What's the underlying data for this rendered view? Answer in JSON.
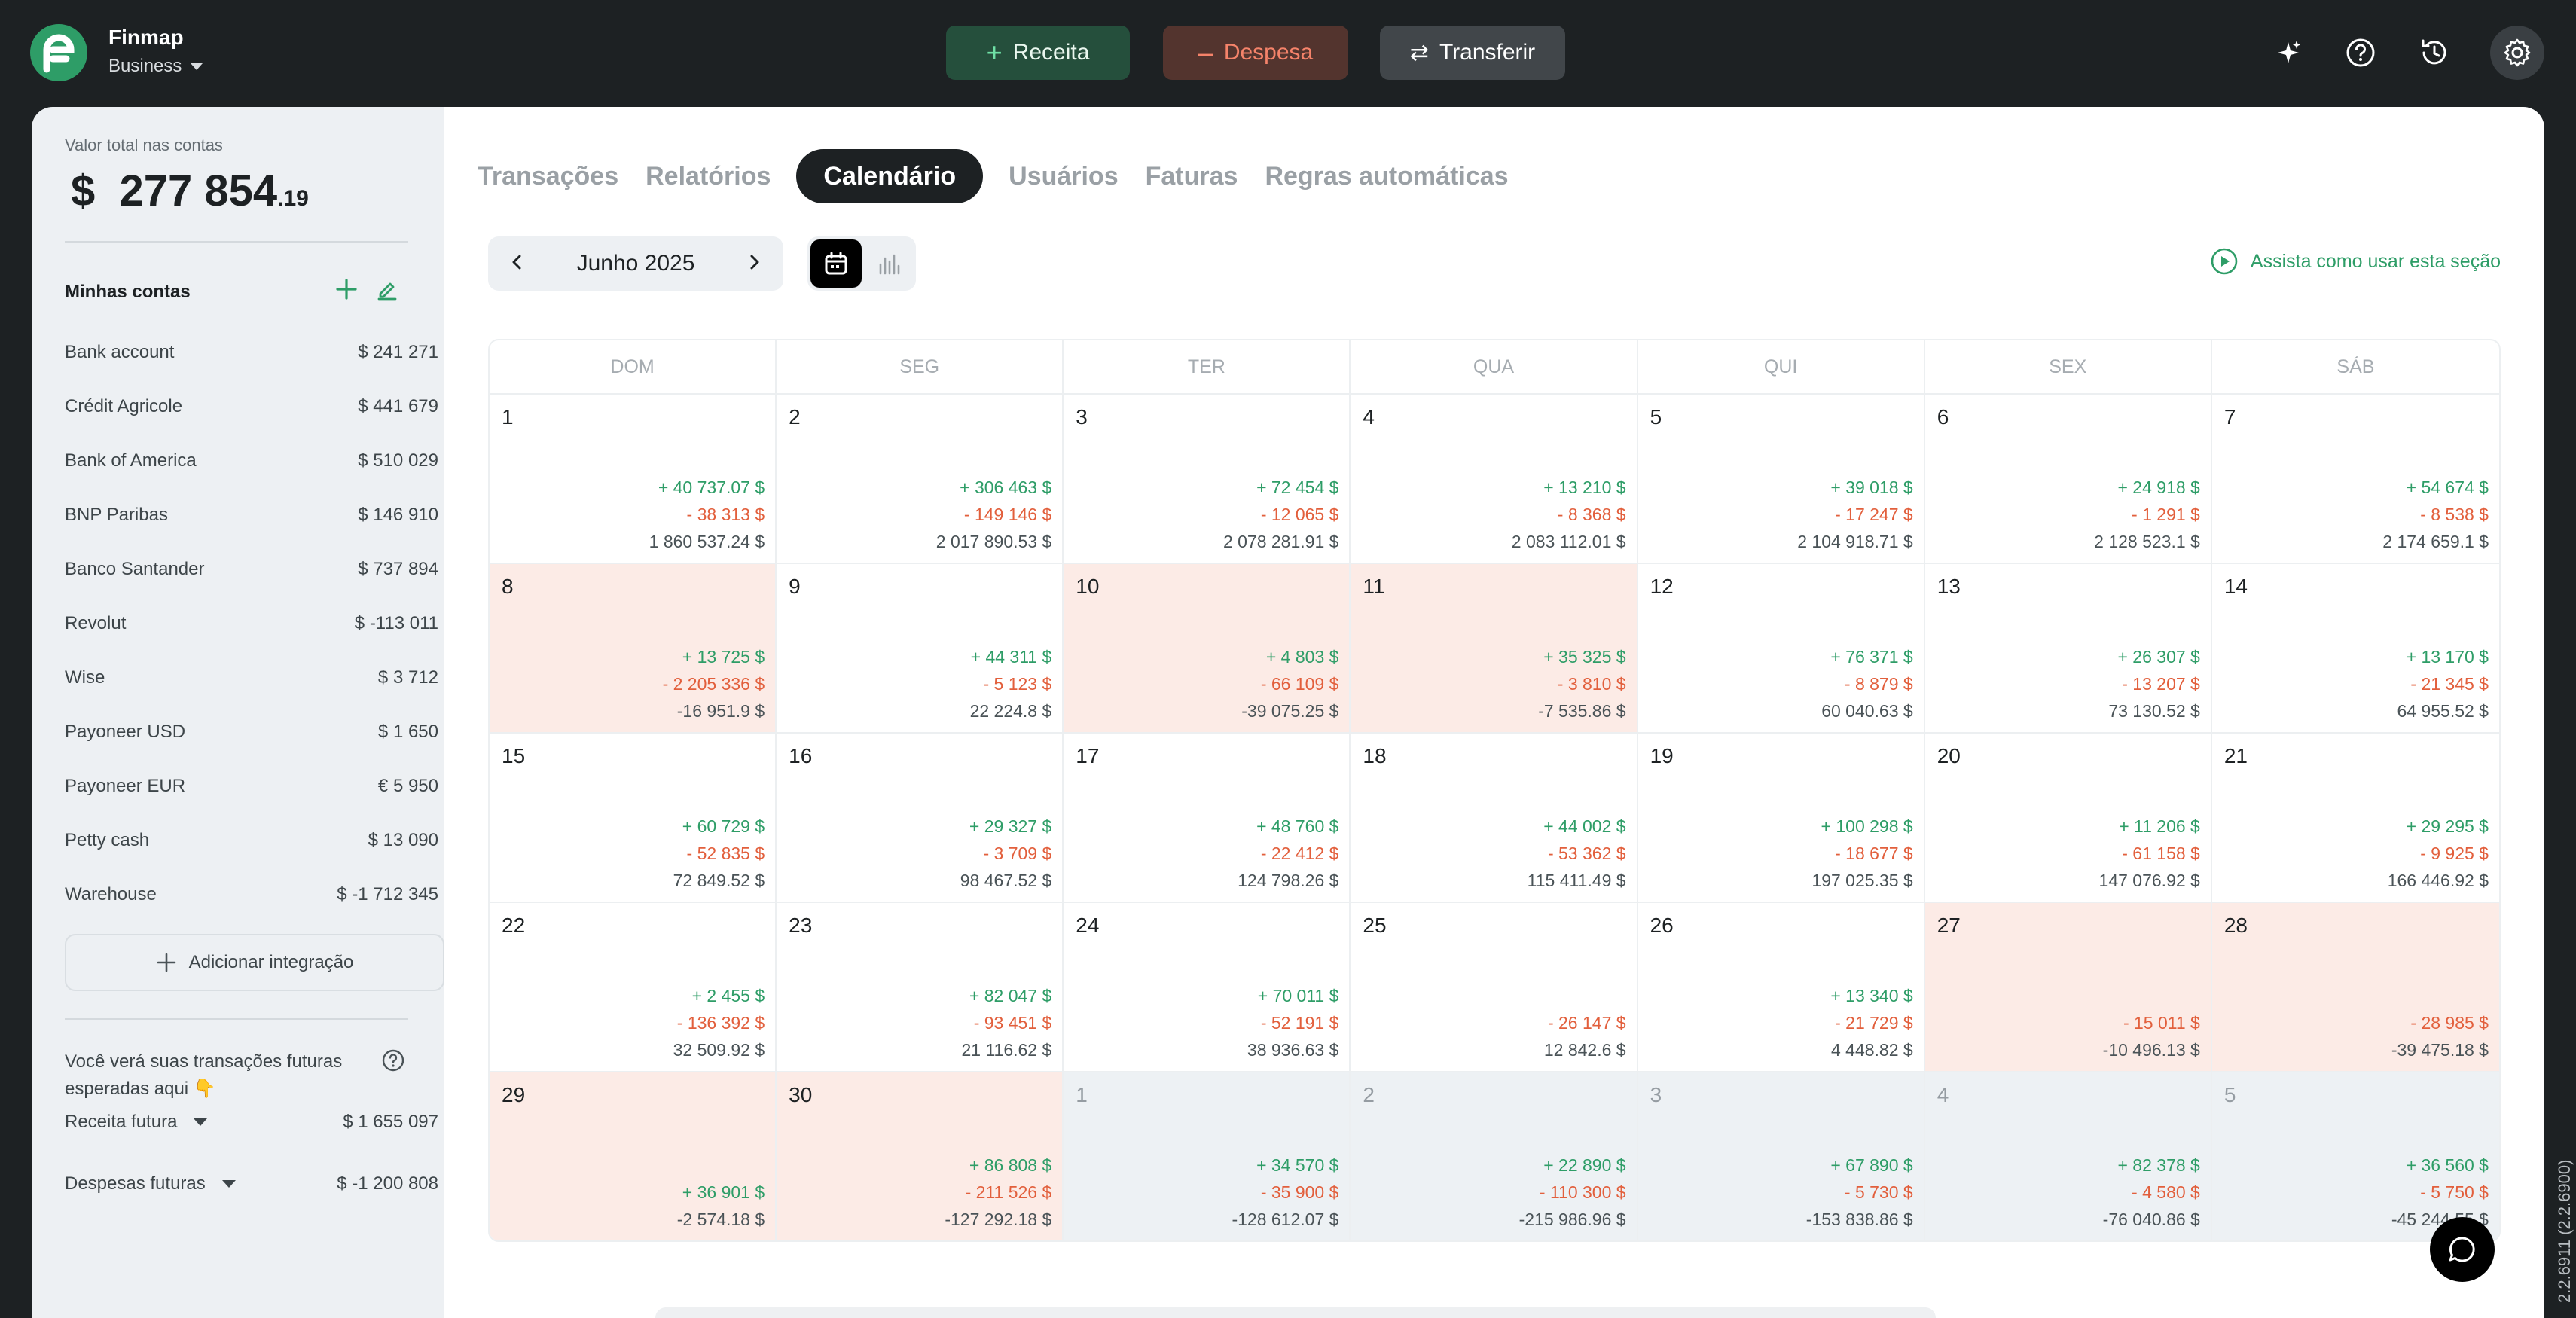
{
  "app": {
    "name": "Finmap",
    "workspace": "Business"
  },
  "actions": {
    "income": "Receita",
    "expense": "Despesa",
    "transfer": "Transferir"
  },
  "sidebar": {
    "total_label": "Valor total nas contas",
    "total_currency": "$",
    "total_main": "277 854",
    "total_cents": ".19",
    "accounts_title": "Minhas contas",
    "accounts": [
      {
        "name": "Bank account",
        "balance": "$  241 271"
      },
      {
        "name": "Crédit Agricole",
        "balance": "$  441 679"
      },
      {
        "name": "Bank of America",
        "balance": "$  510 029"
      },
      {
        "name": "BNP Paribas",
        "balance": "$  146 910"
      },
      {
        "name": "Banco Santander",
        "balance": "$  737 894"
      },
      {
        "name": "Revolut",
        "balance": "$  -113 011"
      },
      {
        "name": "Wise",
        "balance": "$  3 712"
      },
      {
        "name": "Payoneer USD",
        "balance": "$  1 650"
      },
      {
        "name": "Payoneer EUR",
        "balance": "€ 5 950"
      },
      {
        "name": "Petty cash",
        "balance": "$  13 090"
      },
      {
        "name": "Warehouse",
        "balance": "$  -1 712 345"
      }
    ],
    "add_integration": "Adicionar integração",
    "future_note": "Você verá suas transações futuras esperadas aqui 👇",
    "future_income_label": "Receita futura",
    "future_income_value": "$  1 655 097",
    "future_expense_label": "Despesas futuras",
    "future_expense_value": "$  -1 200 808"
  },
  "tabs": [
    {
      "label": "Transações",
      "active": false
    },
    {
      "label": "Relatórios",
      "active": false
    },
    {
      "label": "Calendário",
      "active": true
    },
    {
      "label": "Usuários",
      "active": false
    },
    {
      "label": "Faturas",
      "active": false
    },
    {
      "label": "Regras automáticas",
      "active": false
    }
  ],
  "calendar": {
    "month": "Junho 2025",
    "watch_link": "Assista como usar esta seção",
    "weekdays": [
      "DOM",
      "SEG",
      "TER",
      "QUA",
      "QUI",
      "SEX",
      "SÁB"
    ],
    "days": [
      {
        "n": "1",
        "inc": "+ 40 737.07  $",
        "exp": "- 38 313  $",
        "bal": "1 860 537.24  $",
        "state": "normal"
      },
      {
        "n": "2",
        "inc": "+ 306 463  $",
        "exp": "- 149 146  $",
        "bal": "2 017 890.53  $",
        "state": "normal"
      },
      {
        "n": "3",
        "inc": "+ 72 454  $",
        "exp": "- 12 065  $",
        "bal": "2 078 281.91  $",
        "state": "normal"
      },
      {
        "n": "4",
        "inc": "+ 13 210  $",
        "exp": "- 8 368  $",
        "bal": "2 083 112.01  $",
        "state": "normal"
      },
      {
        "n": "5",
        "inc": "+ 39 018  $",
        "exp": "- 17 247  $",
        "bal": "2 104 918.71  $",
        "state": "normal"
      },
      {
        "n": "6",
        "inc": "+ 24 918  $",
        "exp": "- 1 291  $",
        "bal": "2 128 523.1  $",
        "state": "normal"
      },
      {
        "n": "7",
        "inc": "+ 54 674  $",
        "exp": "- 8 538  $",
        "bal": "2 174 659.1  $",
        "state": "normal"
      },
      {
        "n": "8",
        "inc": "+ 13 725  $",
        "exp": "- 2 205 336  $",
        "bal": "-16 951.9  $",
        "state": "neg"
      },
      {
        "n": "9",
        "inc": "+ 44 311  $",
        "exp": "- 5 123  $",
        "bal": "22 224.8  $",
        "state": "normal"
      },
      {
        "n": "10",
        "inc": "+ 4 803  $",
        "exp": "- 66 109  $",
        "bal": "-39 075.25  $",
        "state": "neg"
      },
      {
        "n": "11",
        "inc": "+ 35 325  $",
        "exp": "- 3 810  $",
        "bal": "-7 535.86  $",
        "state": "neg"
      },
      {
        "n": "12",
        "inc": "+ 76 371  $",
        "exp": "- 8 879  $",
        "bal": "60 040.63  $",
        "state": "normal"
      },
      {
        "n": "13",
        "inc": "+ 26 307  $",
        "exp": "- 13 207  $",
        "bal": "73 130.52  $",
        "state": "normal"
      },
      {
        "n": "14",
        "inc": "+ 13 170  $",
        "exp": "- 21 345  $",
        "bal": "64 955.52  $",
        "state": "normal"
      },
      {
        "n": "15",
        "inc": "+ 60 729  $",
        "exp": "- 52 835  $",
        "bal": "72 849.52  $",
        "state": "normal"
      },
      {
        "n": "16",
        "inc": "+ 29 327  $",
        "exp": "- 3 709  $",
        "bal": "98 467.52  $",
        "state": "normal"
      },
      {
        "n": "17",
        "inc": "+ 48 760  $",
        "exp": "- 22 412  $",
        "bal": "124 798.26  $",
        "state": "normal"
      },
      {
        "n": "18",
        "inc": "+ 44 002  $",
        "exp": "- 53 362  $",
        "bal": "115 411.49  $",
        "state": "normal"
      },
      {
        "n": "19",
        "inc": "+ 100 298  $",
        "exp": "- 18 677  $",
        "bal": "197 025.35  $",
        "state": "normal"
      },
      {
        "n": "20",
        "inc": "+ 11 206  $",
        "exp": "- 61 158  $",
        "bal": "147 076.92  $",
        "state": "normal"
      },
      {
        "n": "21",
        "inc": "+ 29 295  $",
        "exp": "- 9 925  $",
        "bal": "166 446.92  $",
        "state": "normal"
      },
      {
        "n": "22",
        "inc": "+ 2 455  $",
        "exp": "- 136 392  $",
        "bal": "32 509.92  $",
        "state": "normal"
      },
      {
        "n": "23",
        "inc": "+ 82 047  $",
        "exp": "- 93 451  $",
        "bal": "21 116.62  $",
        "state": "normal"
      },
      {
        "n": "24",
        "inc": "+ 70 011  $",
        "exp": "- 52 191  $",
        "bal": "38 936.63  $",
        "state": "normal"
      },
      {
        "n": "25",
        "inc": "",
        "exp": "- 26 147  $",
        "bal": "12 842.6  $",
        "state": "normal"
      },
      {
        "n": "26",
        "inc": "+ 13 340  $",
        "exp": "- 21 729  $",
        "bal": "4 448.82  $",
        "state": "normal"
      },
      {
        "n": "27",
        "inc": "",
        "exp": "- 15 011  $",
        "bal": "-10 496.13  $",
        "state": "neg"
      },
      {
        "n": "28",
        "inc": "",
        "exp": "- 28 985  $",
        "bal": "-39 475.18  $",
        "state": "neg"
      },
      {
        "n": "29",
        "inc": "",
        "exp": "+ 36 901  $",
        "bal": "-2 574.18  $",
        "state": "neg",
        "exp_is_income": true
      },
      {
        "n": "30",
        "inc": "+ 86 808  $",
        "exp": "- 211 526  $",
        "bal": "-127 292.18  $",
        "state": "neg"
      },
      {
        "n": "1",
        "inc": "+ 34 570  $",
        "exp": "- 35 900  $",
        "bal": "-128 612.07  $",
        "state": "next"
      },
      {
        "n": "2",
        "inc": "+ 22 890  $",
        "exp": "- 110 300  $",
        "bal": "-215 986.96  $",
        "state": "next"
      },
      {
        "n": "3",
        "inc": "+ 67 890  $",
        "exp": "- 5 730  $",
        "bal": "-153 838.86  $",
        "state": "next"
      },
      {
        "n": "4",
        "inc": "+ 82 378  $",
        "exp": "- 4 580  $",
        "bal": "-76 040.86  $",
        "state": "next"
      },
      {
        "n": "5",
        "inc": "+ 36 560  $",
        "exp": "- 5 750  $",
        "bal": "-45 244.55  $",
        "state": "next"
      }
    ]
  },
  "version": "2.2.6911 (2.2.6900)",
  "colors": {
    "income": "#2e9d67",
    "expense": "#e25f3c",
    "negative_day_bg": "#fcebe6",
    "next_month_bg": "#edf1f4"
  }
}
